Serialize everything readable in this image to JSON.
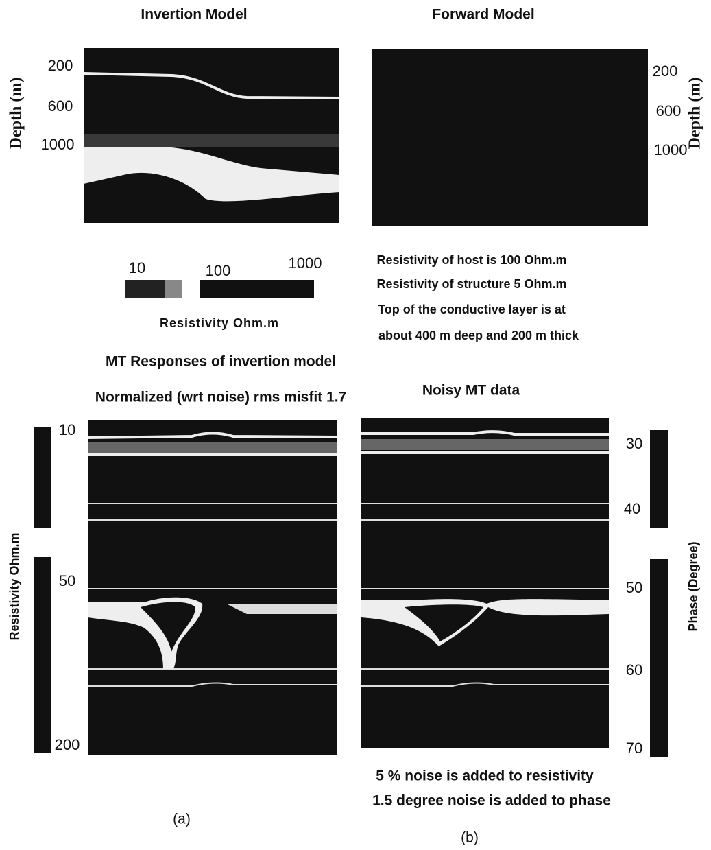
{
  "top_left": {
    "title": "Invertion  Model",
    "axis_label": "Depth (m)",
    "ticks": [
      "200",
      "600",
      "1000"
    ]
  },
  "top_right": {
    "title": "Forward Model",
    "axis_label": "Depth (m)",
    "ticks": [
      "200",
      "600",
      "1000"
    ]
  },
  "colorbar": {
    "ticks": [
      "10",
      "100",
      "1000"
    ],
    "label": "Resistivity Ohm.m"
  },
  "forward_notes": [
    "Resistivity of host is 100 Ohm.m",
    "Resistivity of structure 5 Ohm.m",
    "Top of the conductive layer is at",
    "about 400 m deep  and 200 m thick"
  ],
  "bottom_left": {
    "title_lines": [
      "MT Responses of invertion model",
      "Normalized (wrt noise)  rms misfit 1.7"
    ],
    "axis_label": "Resistivity Ohm.m",
    "ticks": [
      "10",
      "50",
      "200"
    ],
    "caption": "(a)"
  },
  "bottom_right": {
    "title": "Noisy MT data",
    "axis_label": "Phase (Degree)",
    "ticks": [
      "30",
      "40",
      "50",
      "60",
      "70"
    ],
    "notes": [
      "5 % noise is added to resistivity",
      "1.5 degree noise is added to phase"
    ],
    "caption": "(b)"
  }
}
